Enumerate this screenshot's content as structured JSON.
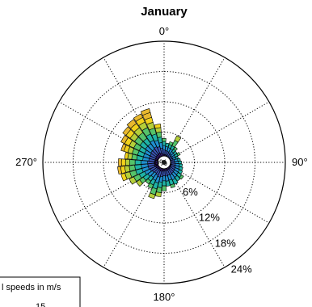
{
  "chart_data": {
    "type": "polar-bar",
    "title": "January",
    "direction_labels": [
      "0°",
      "90°",
      "180°",
      "270°"
    ],
    "radial_ticks": [
      "6%",
      "12%",
      "18%",
      "24%"
    ],
    "radial_values": [
      6,
      12,
      18,
      24
    ],
    "rmax": 24,
    "grid": true,
    "legend": {
      "title": "Wind speeds in m/s",
      "visible_text": "l speeds in m/s",
      "partial_entry": "15",
      "placement": "bottom-left"
    },
    "speed_bin_colors": [
      "#3d1f88",
      "#3a55b4",
      "#1f8fcf",
      "#1fb3a6",
      "#55c46a",
      "#b5cf3a",
      "#f2d21b",
      "#e8b82f"
    ],
    "calm_percent_label": "0%",
    "sectors": [
      {
        "dir": 0,
        "cum": [
          0.9,
          1.8,
          2.7,
          3.5,
          4.1
        ]
      },
      {
        "dir": 10,
        "cum": [
          0.9,
          1.7,
          2.5,
          3.2
        ]
      },
      {
        "dir": 20,
        "cum": [
          0.8,
          1.6,
          2.4,
          3.0,
          3.6
        ]
      },
      {
        "dir": 30,
        "cum": [
          0.7,
          1.5,
          2.3,
          3.0,
          4.2,
          5.2
        ]
      },
      {
        "dir": 40,
        "cum": [
          0.6,
          1.3,
          2.0,
          2.6,
          3.1
        ]
      },
      {
        "dir": 50,
        "cum": [
          0.6,
          1.2,
          1.9,
          2.5
        ]
      },
      {
        "dir": 60,
        "cum": [
          0.6,
          1.2,
          1.8,
          2.4,
          2.9
        ]
      },
      {
        "dir": 70,
        "cum": [
          0.6,
          1.2,
          1.8,
          2.3
        ]
      },
      {
        "dir": 80,
        "cum": [
          0.7,
          1.4,
          2.1,
          2.6
        ]
      },
      {
        "dir": 90,
        "cum": [
          0.7,
          1.5,
          2.2,
          2.8
        ]
      },
      {
        "dir": 100,
        "cum": [
          0.8,
          1.6,
          2.4,
          3.0
        ]
      },
      {
        "dir": 110,
        "cum": [
          0.8,
          1.7,
          2.5,
          3.2
        ]
      },
      {
        "dir": 120,
        "cum": [
          0.9,
          1.8,
          2.7,
          3.4
        ]
      },
      {
        "dir": 130,
        "cum": [
          0.9,
          1.9,
          2.8,
          3.6,
          4.1
        ]
      },
      {
        "dir": 140,
        "cum": [
          1.0,
          2.0,
          3.0,
          3.9
        ]
      },
      {
        "dir": 150,
        "cum": [
          1.0,
          2.1,
          3.2,
          4.2
        ]
      },
      {
        "dir": 160,
        "cum": [
          1.0,
          2.0,
          3.0,
          4.0,
          4.6
        ]
      },
      {
        "dir": 170,
        "cum": [
          1.0,
          2.1,
          3.1,
          4.1
        ]
      },
      {
        "dir": 180,
        "cum": [
          1.0,
          2.0,
          3.0,
          4.0,
          5.0
        ]
      },
      {
        "dir": 190,
        "cum": [
          1.1,
          2.2,
          3.3,
          4.4,
          5.4,
          6.2
        ]
      },
      {
        "dir": 200,
        "cum": [
          1.2,
          2.4,
          3.6,
          4.8,
          6.0,
          6.8
        ]
      },
      {
        "dir": 210,
        "cum": [
          1.1,
          2.2,
          3.3,
          4.3,
          5.1
        ]
      },
      {
        "dir": 220,
        "cum": [
          1.0,
          2.0,
          3.0,
          3.9,
          4.6
        ]
      },
      {
        "dir": 230,
        "cum": [
          1.1,
          2.2,
          3.3,
          4.4,
          5.3,
          6.1
        ]
      },
      {
        "dir": 240,
        "cum": [
          1.2,
          2.4,
          3.6,
          4.8,
          6.0,
          7.0
        ]
      },
      {
        "dir": 250,
        "cum": [
          1.3,
          2.6,
          3.9,
          5.2,
          6.4,
          7.4,
          8.2
        ]
      },
      {
        "dir": 260,
        "cum": [
          1.3,
          2.6,
          3.9,
          5.2,
          6.3,
          7.2,
          8.0,
          8.6
        ]
      },
      {
        "dir": 270,
        "cum": [
          1.3,
          2.6,
          3.9,
          5.1,
          6.2,
          7.0,
          7.8,
          8.4
        ]
      },
      {
        "dir": 280,
        "cum": [
          1.2,
          2.4,
          3.6,
          4.8,
          5.8,
          6.6,
          7.2
        ]
      },
      {
        "dir": 290,
        "cum": [
          1.2,
          2.4,
          3.6,
          4.8,
          5.9,
          6.8,
          7.6,
          8.2
        ]
      },
      {
        "dir": 300,
        "cum": [
          1.2,
          2.4,
          3.6,
          4.8,
          6.0,
          7.0,
          8.0,
          8.8
        ]
      },
      {
        "dir": 310,
        "cum": [
          1.3,
          2.6,
          3.9,
          5.2,
          6.5,
          7.6,
          8.6,
          9.4
        ]
      },
      {
        "dir": 320,
        "cum": [
          1.3,
          2.6,
          3.9,
          5.2,
          6.6,
          7.8,
          8.8,
          9.8
        ]
      },
      {
        "dir": 330,
        "cum": [
          1.4,
          2.8,
          4.2,
          5.6,
          7.0,
          8.2,
          9.2,
          10.0
        ]
      },
      {
        "dir": 340,
        "cum": [
          1.3,
          2.6,
          3.9,
          5.2,
          6.4,
          7.6,
          8.6,
          9.6,
          10.4
        ]
      },
      {
        "dir": 350,
        "cum": [
          1.1,
          2.2,
          3.3,
          4.4,
          5.4,
          6.3,
          7.0
        ]
      }
    ]
  }
}
